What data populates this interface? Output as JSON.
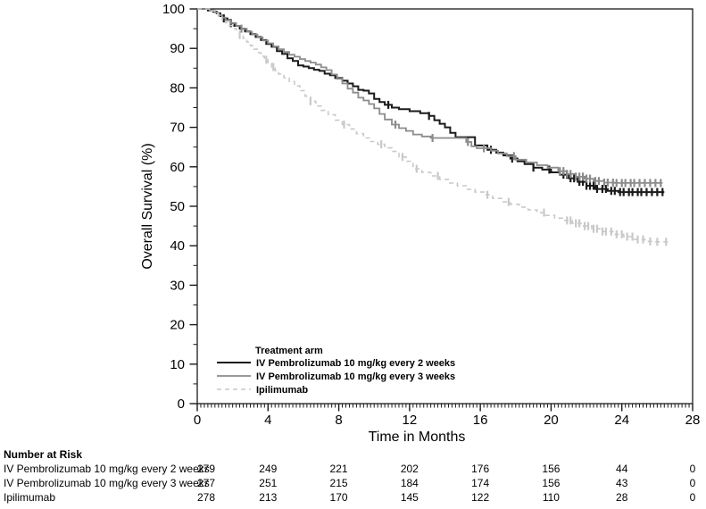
{
  "chart_data": {
    "type": "line",
    "subtype": "kaplan-meier-step",
    "title": "",
    "xlabel": "Time in Months",
    "ylabel": "Overall Survival (%)",
    "xlim": [
      0,
      28
    ],
    "ylim": [
      0,
      100
    ],
    "x_ticks": [
      0,
      4,
      8,
      12,
      16,
      20,
      24,
      28
    ],
    "y_ticks": [
      0,
      10,
      20,
      30,
      40,
      50,
      60,
      70,
      80,
      90,
      100
    ],
    "x_minor_step": 0.2,
    "y_minor_step": 5,
    "grid": false,
    "legend_title": "Treatment arm",
    "legend_position": "inside-bottom-left",
    "frame_color": "#1a1a1a",
    "series": [
      {
        "name": "IV Pembrolizumab 10 mg/kg every 2 weeks",
        "color": "#1a1a1a",
        "dash": null,
        "line_width": 2,
        "end_t": 26.4,
        "steps": [
          [
            0,
            100
          ],
          [
            0.6,
            99.6
          ],
          [
            0.9,
            99.3
          ],
          [
            1.1,
            98.9
          ],
          [
            1.3,
            98.2
          ],
          [
            1.5,
            97.6
          ],
          [
            1.7,
            97.2
          ],
          [
            1.9,
            96.4
          ],
          [
            2.1,
            95.7
          ],
          [
            2.4,
            95
          ],
          [
            2.7,
            94.3
          ],
          [
            3,
            93.6
          ],
          [
            3.3,
            92.9
          ],
          [
            3.6,
            92.1
          ],
          [
            3.9,
            91.1
          ],
          [
            4.2,
            90.4
          ],
          [
            4.5,
            89.3
          ],
          [
            4.8,
            88.6
          ],
          [
            5.1,
            87.5
          ],
          [
            5.4,
            86.8
          ],
          [
            5.7,
            85.7
          ],
          [
            6,
            85.4
          ],
          [
            6.3,
            85
          ],
          [
            6.6,
            84.6
          ],
          [
            6.9,
            84.3
          ],
          [
            7.2,
            83.6
          ],
          [
            7.5,
            83.2
          ],
          [
            7.8,
            82.5
          ],
          [
            8.2,
            81.8
          ],
          [
            8.5,
            81.1
          ],
          [
            8.8,
            80.4
          ],
          [
            9.1,
            79.5
          ],
          [
            9.4,
            79.3
          ],
          [
            9.7,
            78.6
          ],
          [
            10,
            77.2
          ],
          [
            10.3,
            76.4
          ],
          [
            10.6,
            75.7
          ],
          [
            11,
            75
          ],
          [
            11.4,
            74.6
          ],
          [
            12,
            74.1
          ],
          [
            12.6,
            73.6
          ],
          [
            13.1,
            72.9
          ],
          [
            13.4,
            71.8
          ],
          [
            13.7,
            70.9
          ],
          [
            14,
            70
          ],
          [
            14.3,
            68.6
          ],
          [
            14.6,
            67.5
          ],
          [
            15.7,
            65.4
          ],
          [
            16.4,
            64.3
          ],
          [
            16.9,
            63.6
          ],
          [
            17.3,
            62.9
          ],
          [
            17.7,
            62.1
          ],
          [
            18.1,
            61.4
          ],
          [
            18.5,
            60.7
          ],
          [
            19,
            59.8
          ],
          [
            19.5,
            59.3
          ],
          [
            20,
            58.6
          ],
          [
            20.5,
            58
          ],
          [
            21,
            57.1
          ],
          [
            21.5,
            56.2
          ],
          [
            22,
            55.2
          ],
          [
            22.5,
            54.4
          ],
          [
            23.2,
            53.9
          ],
          [
            23.8,
            53.6
          ]
        ],
        "censor_t": [
          1.5,
          1.9,
          10.8,
          13.1,
          16.6,
          17.8,
          19,
          19.9,
          20.7,
          20.9,
          21.1,
          21.3,
          21.6,
          21.8,
          22,
          22.2,
          22.4,
          22.6,
          22.9,
          23.1,
          23.4,
          23.6,
          23.9,
          24.1,
          24.4,
          24.6,
          24.9,
          25.1,
          25.4,
          25.7,
          26,
          26.3
        ]
      },
      {
        "name": "IV Pembrolizumab 10 mg/kg every 3 weeks",
        "color": "#8c8c8c",
        "dash": null,
        "line_width": 1.8,
        "end_t": 26.3,
        "steps": [
          [
            0,
            100
          ],
          [
            0.7,
            99.6
          ],
          [
            1,
            99.1
          ],
          [
            1.2,
            98.4
          ],
          [
            1.4,
            97.8
          ],
          [
            1.6,
            97.1
          ],
          [
            1.9,
            96.4
          ],
          [
            2.2,
            95.7
          ],
          [
            2.5,
            95
          ],
          [
            2.8,
            94.2
          ],
          [
            3.1,
            93.5
          ],
          [
            3.4,
            92.8
          ],
          [
            3.7,
            92
          ],
          [
            4,
            91.3
          ],
          [
            4.3,
            90.5
          ],
          [
            4.6,
            89.8
          ],
          [
            4.9,
            89.1
          ],
          [
            5.2,
            88.4
          ],
          [
            5.5,
            87.9
          ],
          [
            5.8,
            87.3
          ],
          [
            6.1,
            86.8
          ],
          [
            6.4,
            86.4
          ],
          [
            6.7,
            85.9
          ],
          [
            7,
            85.2
          ],
          [
            7.3,
            84.5
          ],
          [
            7.6,
            83.4
          ],
          [
            7.9,
            82.3
          ],
          [
            8.2,
            81.1
          ],
          [
            8.5,
            79.8
          ],
          [
            8.8,
            78.8
          ],
          [
            9.1,
            77.5
          ],
          [
            9.4,
            76.8
          ],
          [
            9.7,
            75.9
          ],
          [
            10,
            74.8
          ],
          [
            10.3,
            73.4
          ],
          [
            10.6,
            72
          ],
          [
            11,
            70.7
          ],
          [
            11.4,
            69.8
          ],
          [
            11.8,
            69.1
          ],
          [
            12.2,
            68.2
          ],
          [
            12.7,
            67.7
          ],
          [
            13.2,
            67.3
          ],
          [
            15.2,
            66.3
          ],
          [
            15.5,
            65.2
          ],
          [
            15.8,
            64.7
          ],
          [
            16.6,
            64.1
          ],
          [
            17,
            63.4
          ],
          [
            17.5,
            62.7
          ],
          [
            18,
            61.8
          ],
          [
            18.6,
            61.1
          ],
          [
            19.2,
            60.4
          ],
          [
            19.8,
            59.8
          ],
          [
            20.4,
            58.9
          ],
          [
            20.9,
            58.2
          ],
          [
            21.4,
            57.5
          ],
          [
            21.9,
            57
          ],
          [
            22.4,
            56.4
          ],
          [
            23,
            56
          ],
          [
            23.6,
            55.9
          ]
        ],
        "censor_t": [
          2.5,
          11.2,
          13.3,
          15.3,
          16.2,
          17.9,
          20.5,
          20.7,
          20.9,
          21.1,
          21.4,
          21.6,
          21.8,
          22,
          22.2,
          22.5,
          22.7,
          23,
          23.2,
          23.5,
          23.7,
          24,
          24.2,
          24.5,
          24.7,
          25,
          25.3,
          25.6,
          25.9,
          26.2
        ]
      },
      {
        "name": "Ipilimumab",
        "color": "#c9c9c9",
        "dash": "5,4",
        "line_width": 1.6,
        "end_t": 26.6,
        "steps": [
          [
            0,
            100
          ],
          [
            0.8,
            99.5
          ],
          [
            1,
            98.9
          ],
          [
            1.2,
            98.2
          ],
          [
            1.4,
            97.3
          ],
          [
            1.6,
            96.5
          ],
          [
            1.8,
            95.8
          ],
          [
            2,
            95
          ],
          [
            2.2,
            94.3
          ],
          [
            2.4,
            93.4
          ],
          [
            2.6,
            92.5
          ],
          [
            2.8,
            91.6
          ],
          [
            3,
            90.7
          ],
          [
            3.2,
            89.8
          ],
          [
            3.4,
            88.9
          ],
          [
            3.6,
            88
          ],
          [
            3.8,
            87.1
          ],
          [
            4,
            86.2
          ],
          [
            4.2,
            85.3
          ],
          [
            4.4,
            84.4
          ],
          [
            4.6,
            83.5
          ],
          [
            4.9,
            82.6
          ],
          [
            5.2,
            81.6
          ],
          [
            5.5,
            80.5
          ],
          [
            5.8,
            79.3
          ],
          [
            6.1,
            77.9
          ],
          [
            6.4,
            76.6
          ],
          [
            6.7,
            75.4
          ],
          [
            7,
            74.3
          ],
          [
            7.4,
            73.2
          ],
          [
            7.8,
            71.8
          ],
          [
            8.2,
            70.7
          ],
          [
            8.6,
            69.6
          ],
          [
            9,
            68.4
          ],
          [
            9.4,
            67.3
          ],
          [
            9.8,
            66.4
          ],
          [
            10.2,
            65.7
          ],
          [
            10.6,
            64.8
          ],
          [
            11,
            63.9
          ],
          [
            11.4,
            62.5
          ],
          [
            11.8,
            61.4
          ],
          [
            12.2,
            59.5
          ],
          [
            12.7,
            58.6
          ],
          [
            13.2,
            57.7
          ],
          [
            13.7,
            56.8
          ],
          [
            14.2,
            55.9
          ],
          [
            14.7,
            55.2
          ],
          [
            15.2,
            54.3
          ],
          [
            15.7,
            53.6
          ],
          [
            16.2,
            52.9
          ],
          [
            16.7,
            52
          ],
          [
            17.2,
            51.1
          ],
          [
            17.7,
            50.5
          ],
          [
            18.2,
            49.8
          ],
          [
            18.7,
            49.1
          ],
          [
            19.2,
            48.4
          ],
          [
            19.7,
            47.7
          ],
          [
            20.2,
            47
          ],
          [
            20.7,
            46.4
          ],
          [
            21.2,
            45.7
          ],
          [
            21.7,
            45
          ],
          [
            22.3,
            44.3
          ],
          [
            22.9,
            43.6
          ],
          [
            23.5,
            42.9
          ],
          [
            24.1,
            42.3
          ],
          [
            24.7,
            41.6
          ],
          [
            25.3,
            41.1
          ],
          [
            25.9,
            41
          ]
        ],
        "censor_t": [
          2.4,
          3.9,
          4.3,
          6.4,
          8.3,
          10.4,
          11.6,
          12.4,
          13.6,
          16.4,
          17.6,
          19.6,
          20.9,
          21.1,
          21.4,
          21.6,
          21.9,
          22.1,
          22.4,
          22.6,
          22.9,
          23.1,
          23.4,
          23.7,
          24,
          24.3,
          24.6,
          24.9,
          25.2,
          25.6,
          26,
          26.5
        ]
      }
    ]
  },
  "risk_table": {
    "title": "Number at Risk",
    "time_points": [
      0,
      4,
      8,
      12,
      16,
      20,
      24,
      28
    ],
    "rows": [
      {
        "label": "IV Pembrolizumab 10 mg/kg every 2 weeks",
        "values": [
          279,
          249,
          221,
          202,
          176,
          156,
          44,
          0
        ]
      },
      {
        "label": "IV Pembrolizumab 10 mg/kg every 3 weeks",
        "values": [
          277,
          251,
          215,
          184,
          174,
          156,
          43,
          0
        ]
      },
      {
        "label": "Ipilimumab",
        "values": [
          278,
          213,
          170,
          145,
          122,
          110,
          28,
          0
        ]
      }
    ]
  }
}
